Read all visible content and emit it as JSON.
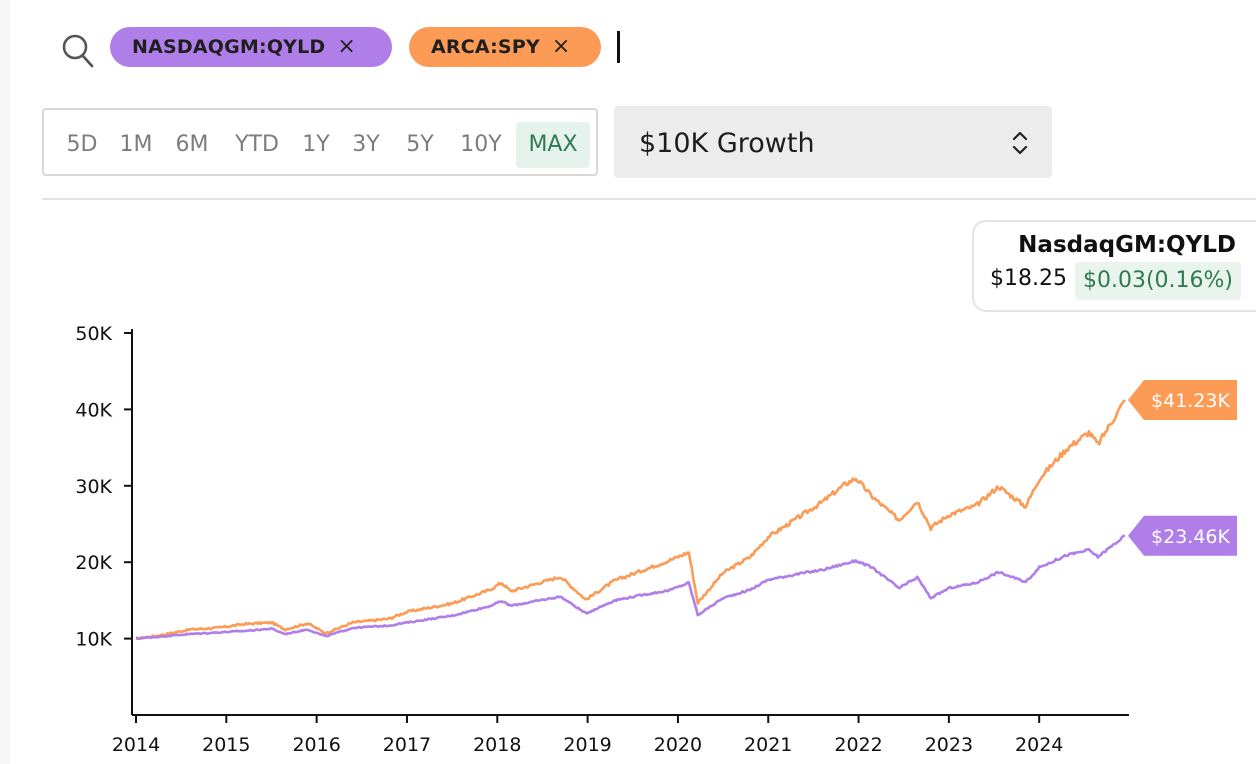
{
  "search": {
    "chips": [
      {
        "label": "NASDAQGM:QYLD",
        "close": "×",
        "color": "#b07ee8"
      },
      {
        "label": "ARCA:SPY",
        "close": "×",
        "color": "#fc9b55"
      }
    ]
  },
  "range_tabs": [
    {
      "label": "5D",
      "active": false
    },
    {
      "label": "1M",
      "active": false
    },
    {
      "label": "6M",
      "active": false
    },
    {
      "label": "YTD",
      "active": false
    },
    {
      "label": "1Y",
      "active": false
    },
    {
      "label": "3Y",
      "active": false
    },
    {
      "label": "5Y",
      "active": false
    },
    {
      "label": "10Y",
      "active": false
    },
    {
      "label": "MAX",
      "active": true
    }
  ],
  "metric_select": {
    "value": "$10K Growth"
  },
  "tooltip": {
    "symbol": "NasdaqGM:QYLD",
    "price": "$18.25",
    "change": "$0.03(0.16%)"
  },
  "colors": {
    "qyld": "#b07ee8",
    "spy": "#fc9b55",
    "positive": "#2f7a52"
  },
  "chart_data": {
    "type": "line",
    "title": "",
    "xlabel": "",
    "ylabel": "",
    "ylim": [
      0,
      50000
    ],
    "xlim": [
      2014.0,
      2024.95
    ],
    "yticks": [
      10000,
      20000,
      30000,
      40000,
      50000
    ],
    "ytick_labels": [
      "10K",
      "20K",
      "30K",
      "40K",
      "50K"
    ],
    "xticks": [
      2014,
      2015,
      2016,
      2017,
      2018,
      2019,
      2020,
      2021,
      2022,
      2023,
      2024
    ],
    "xtick_labels": [
      "2014",
      "2015",
      "2016",
      "2017",
      "2018",
      "2019",
      "2020",
      "2021",
      "2022",
      "2023",
      "2024"
    ],
    "grid": false,
    "series": [
      {
        "name": "ARCA:SPY",
        "color": "#fc9b55",
        "end_label": "$41.23K",
        "points": [
          [
            2014.0,
            10000
          ],
          [
            2014.3,
            10500
          ],
          [
            2014.6,
            11200
          ],
          [
            2014.9,
            11400
          ],
          [
            2015.2,
            11900
          ],
          [
            2015.5,
            12100
          ],
          [
            2015.65,
            11200
          ],
          [
            2015.9,
            12000
          ],
          [
            2016.1,
            10700
          ],
          [
            2016.4,
            12100
          ],
          [
            2016.8,
            12600
          ],
          [
            2017.0,
            13500
          ],
          [
            2017.5,
            14600
          ],
          [
            2017.9,
            16300
          ],
          [
            2018.05,
            17300
          ],
          [
            2018.15,
            16200
          ],
          [
            2018.7,
            18100
          ],
          [
            2018.98,
            15100
          ],
          [
            2019.3,
            17600
          ],
          [
            2019.6,
            18900
          ],
          [
            2019.9,
            20200
          ],
          [
            2020.12,
            21300
          ],
          [
            2020.22,
            14700
          ],
          [
            2020.5,
            18600
          ],
          [
            2020.8,
            20700
          ],
          [
            2021.0,
            23300
          ],
          [
            2021.3,
            25600
          ],
          [
            2021.6,
            27900
          ],
          [
            2021.85,
            30200
          ],
          [
            2021.97,
            31000
          ],
          [
            2022.15,
            28600
          ],
          [
            2022.45,
            25500
          ],
          [
            2022.65,
            28000
          ],
          [
            2022.8,
            24500
          ],
          [
            2023.0,
            26200
          ],
          [
            2023.3,
            27400
          ],
          [
            2023.55,
            29900
          ],
          [
            2023.85,
            27300
          ],
          [
            2024.0,
            30900
          ],
          [
            2024.3,
            34800
          ],
          [
            2024.55,
            37000
          ],
          [
            2024.65,
            35400
          ],
          [
            2024.95,
            41230
          ]
        ]
      },
      {
        "name": "NASDAQGM:QYLD",
        "color": "#b07ee8",
        "end_label": "$23.46K",
        "points": [
          [
            2014.0,
            10000
          ],
          [
            2014.3,
            10300
          ],
          [
            2014.6,
            10600
          ],
          [
            2014.9,
            10800
          ],
          [
            2015.2,
            11000
          ],
          [
            2015.5,
            11300
          ],
          [
            2015.65,
            10600
          ],
          [
            2015.9,
            11200
          ],
          [
            2016.1,
            10300
          ],
          [
            2016.4,
            11400
          ],
          [
            2016.8,
            11700
          ],
          [
            2017.0,
            12100
          ],
          [
            2017.5,
            13000
          ],
          [
            2017.9,
            14200
          ],
          [
            2018.05,
            14900
          ],
          [
            2018.15,
            14300
          ],
          [
            2018.7,
            15500
          ],
          [
            2018.98,
            13300
          ],
          [
            2019.3,
            15000
          ],
          [
            2019.6,
            15700
          ],
          [
            2019.9,
            16300
          ],
          [
            2020.12,
            17300
          ],
          [
            2020.22,
            13100
          ],
          [
            2020.5,
            15300
          ],
          [
            2020.8,
            16400
          ],
          [
            2021.0,
            17700
          ],
          [
            2021.3,
            18400
          ],
          [
            2021.6,
            19000
          ],
          [
            2021.85,
            19800
          ],
          [
            2021.97,
            20200
          ],
          [
            2022.15,
            19300
          ],
          [
            2022.45,
            16600
          ],
          [
            2022.65,
            18000
          ],
          [
            2022.8,
            15300
          ],
          [
            2023.0,
            16600
          ],
          [
            2023.3,
            17300
          ],
          [
            2023.55,
            18700
          ],
          [
            2023.85,
            17400
          ],
          [
            2024.0,
            19300
          ],
          [
            2024.3,
            20900
          ],
          [
            2024.55,
            21600
          ],
          [
            2024.65,
            20700
          ],
          [
            2024.95,
            23460
          ]
        ]
      }
    ]
  }
}
